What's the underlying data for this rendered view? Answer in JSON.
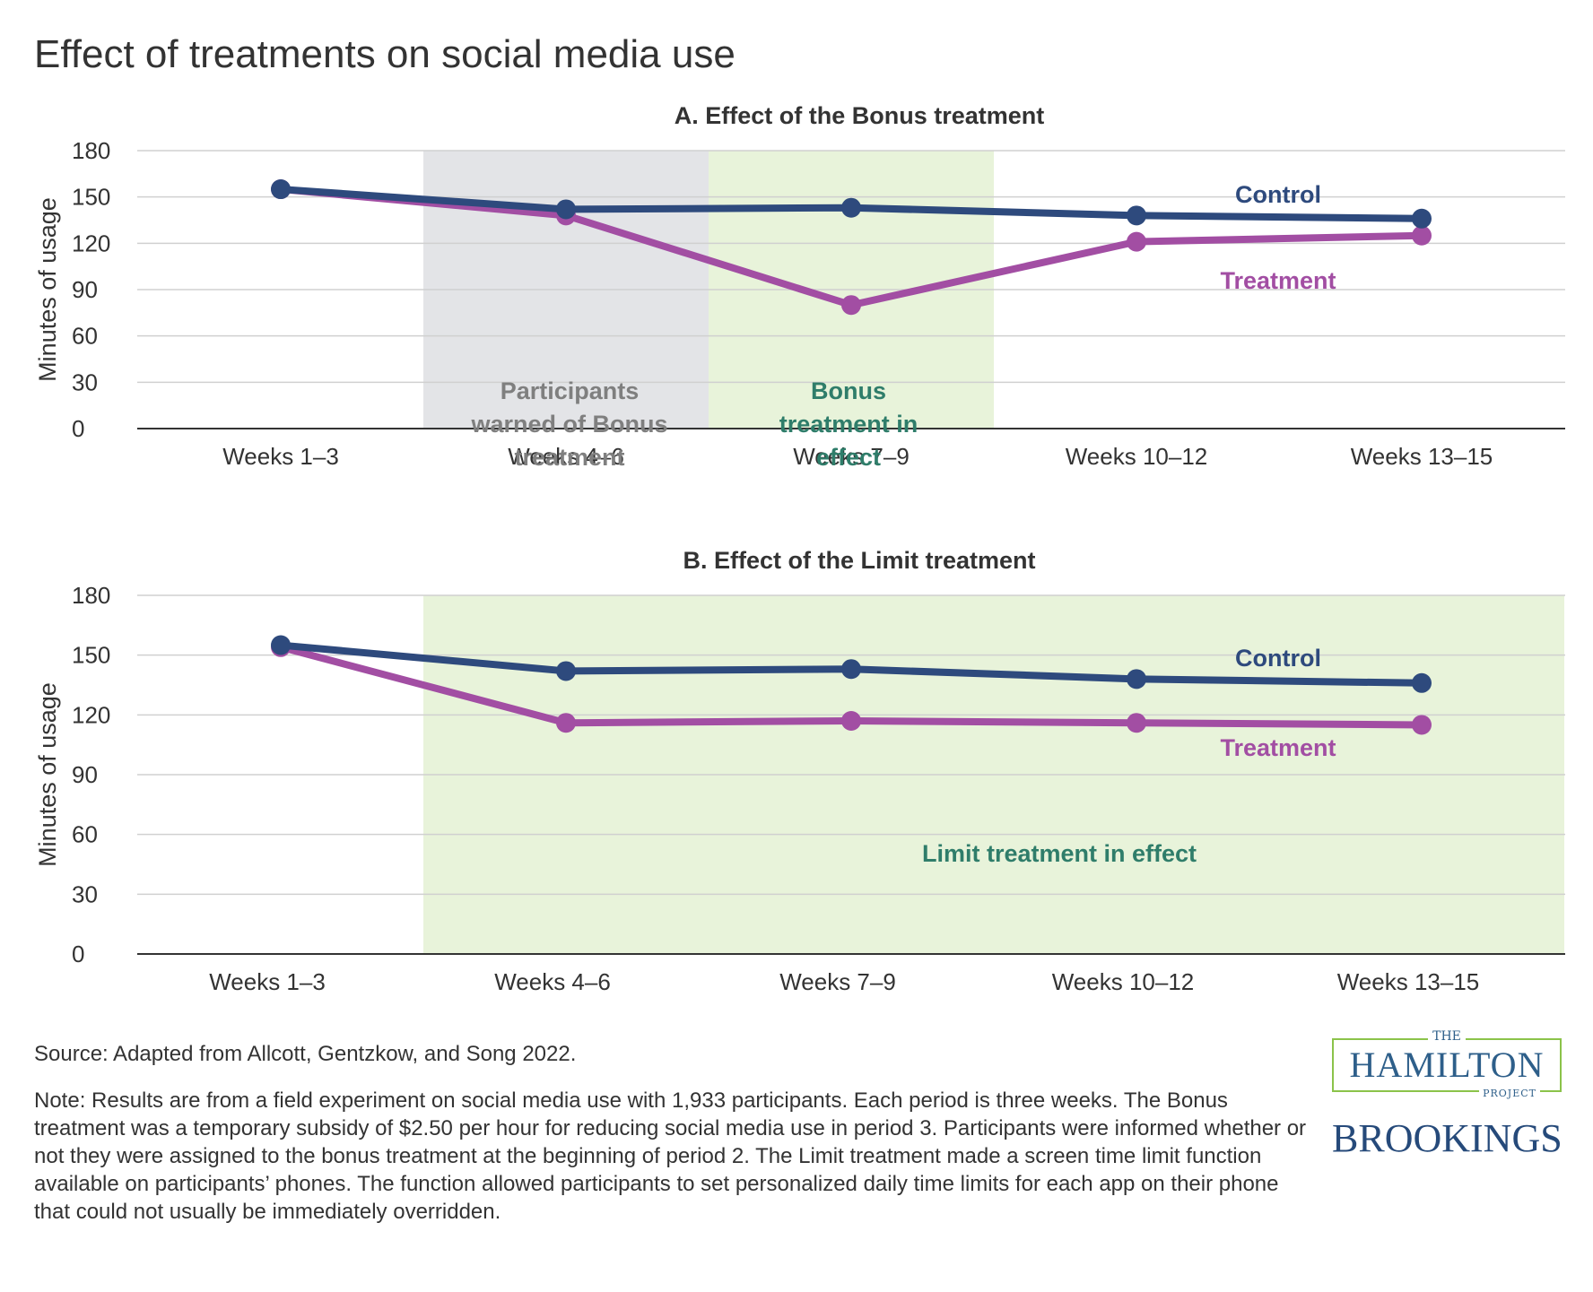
{
  "title": "Effect of treatments on social media use",
  "chart_data": [
    {
      "type": "line",
      "title": "A. Effect of the Bonus treatment",
      "xlabel": "",
      "ylabel": "Minutes of usage",
      "categories": [
        "Weeks 1–3",
        "Weeks 4–6",
        "Weeks 7–9",
        "Weeks 10–12",
        "Weeks 13–15"
      ],
      "yticks": [
        0,
        30,
        60,
        90,
        120,
        150,
        180
      ],
      "ylim": [
        0,
        180
      ],
      "grid": true,
      "series": [
        {
          "name": "Control",
          "values": [
            155,
            142,
            143,
            138,
            136
          ],
          "color": "#2e4a7d"
        },
        {
          "name": "Treatment",
          "values": [
            155,
            138,
            80,
            121,
            125
          ],
          "color": "#a24ea3"
        }
      ],
      "shaded_regions": [
        {
          "label": "Participants warned of Bonus treatment",
          "lines": [
            "Participants",
            "warned of Bonus",
            "treatment"
          ],
          "from_index": 0.5,
          "to_index": 1.5,
          "color": "#e3e4e7",
          "text_color": "#7f7f7f"
        },
        {
          "label": "Bonus treatment in effect",
          "lines": [
            "Bonus",
            "treatment in",
            "effect"
          ],
          "from_index": 1.5,
          "to_index": 2.5,
          "color": "#e8f3da",
          "text_color": "#2f7d6a"
        }
      ]
    },
    {
      "type": "line",
      "title": "B. Effect of the Limit treatment",
      "xlabel": "",
      "ylabel": "Minutes of usage",
      "categories": [
        "Weeks 1–3",
        "Weeks 4–6",
        "Weeks 7–9",
        "Weeks 10–12",
        "Weeks 13–15"
      ],
      "yticks": [
        0,
        30,
        60,
        90,
        120,
        150,
        180
      ],
      "ylim": [
        0,
        180
      ],
      "grid": true,
      "series": [
        {
          "name": "Control",
          "values": [
            155,
            142,
            143,
            138,
            136
          ],
          "color": "#2e4a7d"
        },
        {
          "name": "Treatment",
          "values": [
            154,
            116,
            117,
            116,
            115
          ],
          "color": "#a24ea3"
        }
      ],
      "shaded_regions": [
        {
          "label": "Limit treatment in effect",
          "lines": [
            "Limit treatment in effect"
          ],
          "from_index": 0.5,
          "to_index": 4.5,
          "color": "#e8f3da",
          "text_color": "#2f7d6a"
        }
      ]
    }
  ],
  "footer": {
    "source": "Source: Adapted from Allcott, Gentzkow, and Song 2022.",
    "note": "Note: Results are from a field experiment on social media use with 1,933 participants. Each period is three weeks. The Bonus treatment was a temporary subsidy of $2.50 per hour for reducing social media use in period 3. Participants were informed whether or not they were assigned to the bonus treatment at the beginning of period 2. The Limit treatment made a screen time limit function available on participants’ phones. The function allowed participants to set personalized daily time limits for each app on their phone that could not usually be immediately overridden."
  },
  "logos": {
    "hamilton_the": "THE",
    "hamilton_name": "HAMILTON",
    "hamilton_project": "PROJECT",
    "brookings": "BROOKINGS"
  }
}
